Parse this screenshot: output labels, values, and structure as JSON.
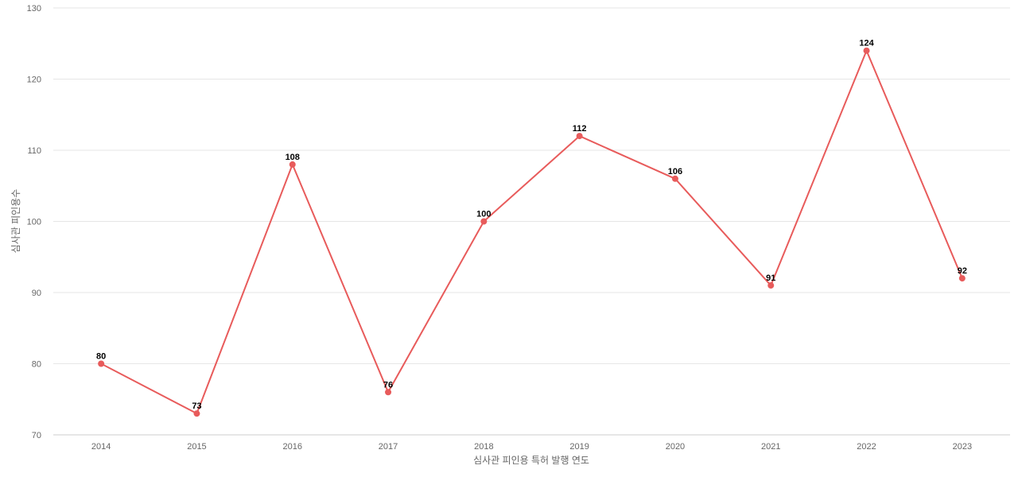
{
  "chart_data": {
    "type": "line",
    "x": [
      "2014",
      "2015",
      "2016",
      "2017",
      "2018",
      "2019",
      "2020",
      "2021",
      "2022",
      "2023"
    ],
    "series": [
      {
        "values": [
          80,
          73,
          108,
          76,
          100,
          112,
          106,
          91,
          124,
          92
        ],
        "color": "#e85b5b"
      }
    ],
    "xlabel": "심사관 피인용 특허 발행 연도",
    "ylabel": "심사관 피인용수",
    "ylim": [
      70,
      130
    ],
    "yticks": [
      70,
      80,
      90,
      100,
      110,
      120,
      130
    ],
    "grid": true,
    "data_labels": true,
    "legend": "none"
  }
}
